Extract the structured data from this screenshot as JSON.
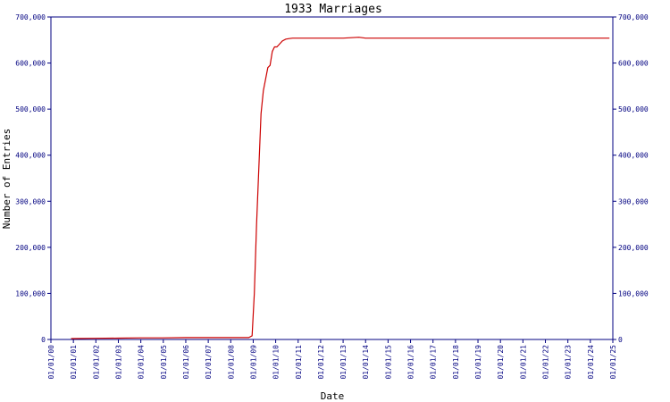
{
  "chart_data": {
    "type": "line",
    "title": "1933 Marriages",
    "xlabel": "Date",
    "ylabel": "Number of Entries",
    "ylim": [
      0,
      700000
    ],
    "yticks": [
      0,
      100000,
      200000,
      300000,
      400000,
      500000,
      600000,
      700000
    ],
    "ytick_labels": [
      "0",
      "100,000",
      "200,000",
      "300,000",
      "400,000",
      "500,000",
      "600,000",
      "700,000"
    ],
    "right_axis": true,
    "grid": false,
    "x_categories": [
      "01/01/00",
      "01/01/01",
      "01/01/02",
      "01/01/03",
      "01/01/04",
      "01/01/05",
      "01/01/06",
      "01/01/07",
      "01/01/08",
      "01/01/09",
      "01/01/10",
      "01/01/11",
      "01/01/12",
      "01/01/13",
      "01/01/14",
      "01/01/15",
      "01/01/16",
      "01/01/17",
      "01/01/18",
      "01/01/19",
      "01/01/20",
      "01/01/21",
      "01/01/22",
      "01/01/23",
      "01/01/24",
      "01/01/25"
    ],
    "colors": {
      "axis": "#000080",
      "line": "#cc0000",
      "text": "#000000"
    },
    "series": [
      {
        "x": [
          2000.9,
          2001.0,
          2002.0,
          2003.0,
          2004.0,
          2005.0,
          2006.0,
          2007.0,
          2008.0,
          2008.8,
          2008.95,
          2009.05,
          2009.15,
          2009.25,
          2009.35,
          2009.45,
          2009.55,
          2009.65,
          2009.75,
          2009.85,
          2009.95,
          2010.05,
          2010.15,
          2010.3,
          2010.45,
          2010.6,
          2010.75,
          2010.9,
          2011.2,
          2012.0,
          2013.0,
          2013.7,
          2014.0,
          2016.0,
          2018.0,
          2020.0,
          2022.0,
          2024.0,
          2024.85
        ],
        "y": [
          2000,
          2000,
          2500,
          3000,
          3500,
          3500,
          4000,
          4000,
          4000,
          4000,
          8000,
          100000,
          250000,
          370000,
          490000,
          540000,
          565000,
          590000,
          595000,
          625000,
          635000,
          635000,
          640000,
          648000,
          652000,
          653000,
          654000,
          654000,
          654000,
          654000,
          654000,
          656000,
          654000,
          654000,
          654000,
          654000,
          654000,
          654000,
          654000
        ]
      }
    ]
  }
}
